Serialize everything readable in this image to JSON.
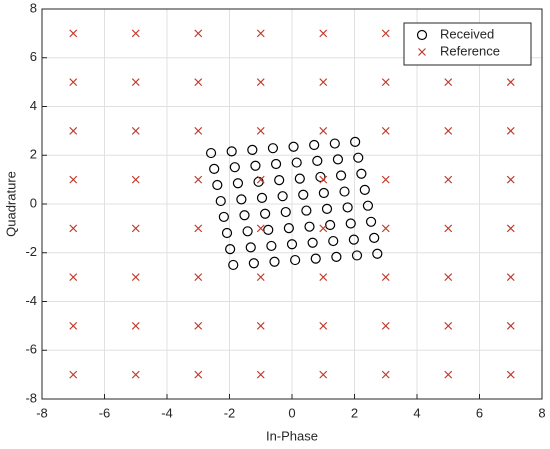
{
  "chart_data": {
    "type": "scatter",
    "xlabel": "In-Phase",
    "ylabel": "Quadrature",
    "xlim": [
      -8,
      8
    ],
    "ylim": [
      -8,
      8
    ],
    "xticks": [
      -8,
      -6,
      -4,
      -2,
      0,
      2,
      4,
      6,
      8
    ],
    "yticks": [
      -8,
      -6,
      -4,
      -2,
      0,
      2,
      4,
      6,
      8
    ],
    "grid": true,
    "legend": "top-right",
    "series": [
      {
        "name": "Received",
        "marker": "o",
        "color": "#000000",
        "x": [
          -2.59,
          -1.93,
          -1.27,
          -0.61,
          0.05,
          0.71,
          1.37,
          2.02,
          -2.49,
          -1.83,
          -1.17,
          -0.51,
          0.15,
          0.81,
          1.47,
          2.12,
          -2.39,
          -1.73,
          -1.07,
          -0.41,
          0.25,
          0.91,
          1.57,
          2.22,
          -2.28,
          -1.62,
          -0.96,
          -0.3,
          0.36,
          1.02,
          1.68,
          2.33,
          -2.18,
          -1.52,
          -0.86,
          -0.2,
          0.46,
          1.12,
          1.78,
          2.43,
          -2.08,
          -1.42,
          -0.76,
          -0.1,
          0.56,
          1.22,
          1.88,
          2.53,
          -1.98,
          -1.32,
          -0.66,
          0.0,
          0.66,
          1.32,
          1.98,
          2.63,
          -1.88,
          -1.22,
          -0.56,
          0.1,
          0.76,
          1.42,
          2.08,
          2.73
        ],
        "values": [
          2.09,
          2.16,
          2.22,
          2.29,
          2.35,
          2.42,
          2.48,
          2.55,
          1.44,
          1.51,
          1.57,
          1.64,
          1.7,
          1.77,
          1.83,
          1.9,
          0.78,
          0.85,
          0.91,
          0.98,
          1.04,
          1.11,
          1.17,
          1.24,
          0.12,
          0.19,
          0.25,
          0.32,
          0.38,
          0.45,
          0.51,
          0.58,
          -0.53,
          -0.46,
          -0.4,
          -0.33,
          -0.27,
          -0.2,
          -0.14,
          -0.07,
          -1.19,
          -1.12,
          -1.06,
          -0.99,
          -0.93,
          -0.86,
          -0.8,
          -0.73,
          -1.85,
          -1.78,
          -1.72,
          -1.65,
          -1.59,
          -1.52,
          -1.46,
          -1.39,
          -2.5,
          -2.43,
          -2.37,
          -2.3,
          -2.24,
          -2.17,
          -2.11,
          -2.04
        ]
      },
      {
        "name": "Reference",
        "marker": "x",
        "color": "#c0392b",
        "x": [
          -7,
          -5,
          -3,
          -1,
          1,
          3,
          5,
          7,
          -7,
          -5,
          -3,
          -1,
          1,
          3,
          5,
          7,
          -7,
          -5,
          -3,
          -1,
          1,
          3,
          5,
          7,
          -7,
          -5,
          -3,
          -1,
          1,
          3,
          5,
          7,
          -7,
          -5,
          -3,
          -1,
          1,
          3,
          5,
          7,
          -7,
          -5,
          -3,
          -1,
          1,
          3,
          5,
          7,
          -7,
          -5,
          -3,
          -1,
          1,
          3,
          5,
          7,
          -7,
          -5,
          -3,
          -1,
          1,
          3,
          5,
          7
        ],
        "values": [
          7,
          7,
          7,
          7,
          7,
          7,
          7,
          7,
          5,
          5,
          5,
          5,
          5,
          5,
          5,
          5,
          3,
          3,
          3,
          3,
          3,
          3,
          3,
          3,
          1,
          1,
          1,
          1,
          1,
          1,
          1,
          1,
          -1,
          -1,
          -1,
          -1,
          -1,
          -1,
          -1,
          -1,
          -3,
          -3,
          -3,
          -3,
          -3,
          -3,
          -3,
          -3,
          -5,
          -5,
          -5,
          -5,
          -5,
          -5,
          -5,
          -5,
          -7,
          -7,
          -7,
          -7,
          -7,
          -7,
          -7,
          -7
        ]
      }
    ]
  }
}
